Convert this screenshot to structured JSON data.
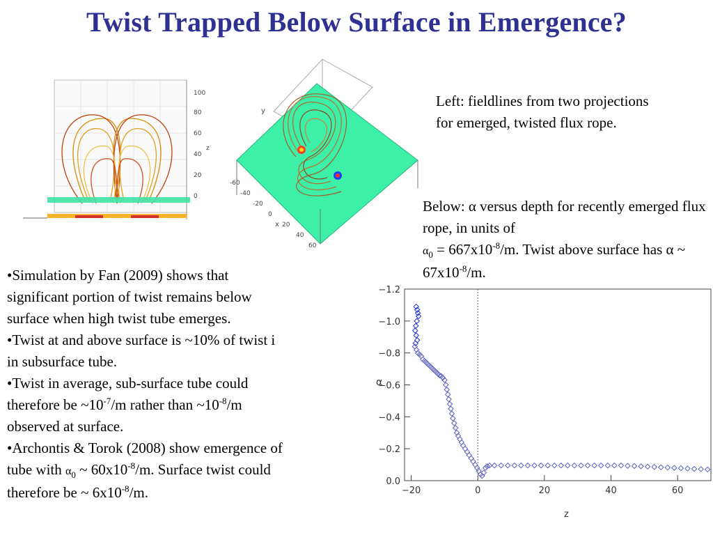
{
  "slide": {
    "title": "Twist Trapped Below Surface in Emergence?"
  },
  "caption_left": "Left: fieldlines from two projections for emerged, twisted flux rope.",
  "caption_below": {
    "line1": "Below: α versus depth for recently emerged flux rope, in units of",
    "alpha": "α",
    "alpha_sub": "0",
    "eq": " = 667x10",
    "eq_exp": "-8",
    "eq_tail": "/m. Twist above surface has α ~ 67x10",
    "eq_exp2": "-8",
    "eq_tail2": "/m."
  },
  "bullets": {
    "b1_l1": "•Simulation by Fan (2009) shows that",
    "b1_l2": "significant portion of twist remains below",
    "b1_l3": "surface when high twist tube emerges.",
    "b2_l1": "•Twist at and above surface is ~10% of twist i",
    "b2_l2": "in subsurface tube.",
    "b3_l1": "•Twist in average, sub-surface tube could",
    "b3_l2a": "therefore be ~10",
    "b3_l2e": "-7",
    "b3_l2b": "/m rather than ~10",
    "b3_l2e2": "-8",
    "b3_l2c": "/m",
    "b3_l3": "observed at surface.",
    "b4_l1": "•Archontis & Torok (2008) show emergence of",
    "b4_l2a": "tube with ",
    "b4_l2alpha": "α",
    "b4_l2sub": "0",
    "b4_l2b": " ~ 60x10",
    "b4_l2e": "-8",
    "b4_l2c": "/m. Surface twist could",
    "b4_l3a": "therefore  be ~ 6x10",
    "b4_l3e": "-8",
    "b4_l3b": "/m."
  },
  "fig1": {
    "z_label": "z",
    "z_ticks": [
      "100",
      "80",
      "60",
      "40",
      "20",
      "0"
    ]
  },
  "fig2": {
    "x_label": "x",
    "y_label": "y",
    "x_ticks": [
      "-60",
      "-40",
      "-20",
      "0",
      "20",
      "40",
      "60"
    ]
  },
  "chart_data": {
    "type": "scatter",
    "xlabel": "z",
    "ylabel": "α",
    "xlim": [
      -22,
      70
    ],
    "ylim": [
      0.0,
      -1.2
    ],
    "x_ticks": [
      "−20",
      "0",
      "20",
      "40",
      "60"
    ],
    "y_ticks": [
      "−1.2",
      "−1.0",
      "−0.8",
      "−0.6",
      "−0.4",
      "−0.2",
      "0.0"
    ],
    "x_tick_values": [
      -20,
      0,
      20,
      40,
      60
    ],
    "y_tick_values": [
      -1.2,
      -1.0,
      -0.8,
      -0.6,
      -0.4,
      -0.2,
      0.0
    ],
    "reference_line_x": 0,
    "series": [
      {
        "points": [
          [
            -18.5,
            -1.09
          ],
          [
            -18.2,
            -1.07
          ],
          [
            -18.0,
            -1.05
          ],
          [
            -17.8,
            -1.03
          ],
          [
            -18.3,
            -1.0
          ],
          [
            -18.6,
            -0.97
          ],
          [
            -18.8,
            -0.94
          ],
          [
            -18.5,
            -0.91
          ],
          [
            -18.2,
            -0.88
          ],
          [
            -18.7,
            -0.86
          ],
          [
            -18.9,
            -0.84
          ],
          [
            -18.4,
            -0.82
          ],
          [
            -18.0,
            -0.8
          ],
          [
            -17.5,
            -0.79
          ],
          [
            -17.0,
            -0.78
          ],
          [
            -16.5,
            -0.76
          ],
          [
            -16.0,
            -0.75
          ],
          [
            -15.5,
            -0.74
          ],
          [
            -15.0,
            -0.73
          ],
          [
            -14.5,
            -0.72
          ],
          [
            -14.0,
            -0.71
          ],
          [
            -13.5,
            -0.7
          ],
          [
            -13.0,
            -0.69
          ],
          [
            -12.5,
            -0.68
          ],
          [
            -12.0,
            -0.67
          ],
          [
            -11.5,
            -0.66
          ],
          [
            -11.0,
            -0.655
          ],
          [
            -10.5,
            -0.645
          ],
          [
            -10.0,
            -0.63
          ],
          [
            -9.6,
            -0.6
          ],
          [
            -9.3,
            -0.57
          ],
          [
            -9.0,
            -0.54
          ],
          [
            -8.7,
            -0.51
          ],
          [
            -8.4,
            -0.48
          ],
          [
            -8.1,
            -0.45
          ],
          [
            -7.8,
            -0.42
          ],
          [
            -7.5,
            -0.39
          ],
          [
            -7.1,
            -0.36
          ],
          [
            -6.7,
            -0.33
          ],
          [
            -6.3,
            -0.3
          ],
          [
            -5.9,
            -0.28
          ],
          [
            -5.4,
            -0.26
          ],
          [
            -4.9,
            -0.24
          ],
          [
            -4.4,
            -0.22
          ],
          [
            -3.8,
            -0.2
          ],
          [
            -3.2,
            -0.18
          ],
          [
            -2.6,
            -0.16
          ],
          [
            -2.0,
            -0.14
          ],
          [
            -1.4,
            -0.12
          ],
          [
            -0.8,
            -0.1
          ],
          [
            -0.2,
            -0.08
          ],
          [
            0.3,
            -0.06
          ],
          [
            0.8,
            -0.04
          ],
          [
            1.3,
            -0.03
          ],
          [
            1.8,
            -0.05
          ],
          [
            2.3,
            -0.08
          ],
          [
            2.8,
            -0.09
          ],
          [
            3.5,
            -0.095
          ],
          [
            5,
            -0.095
          ],
          [
            7,
            -0.095
          ],
          [
            9,
            -0.095
          ],
          [
            11,
            -0.095
          ],
          [
            13,
            -0.095
          ],
          [
            15,
            -0.095
          ],
          [
            17,
            -0.095
          ],
          [
            19,
            -0.095
          ],
          [
            21,
            -0.095
          ],
          [
            23,
            -0.095
          ],
          [
            25,
            -0.095
          ],
          [
            27,
            -0.095
          ],
          [
            29,
            -0.095
          ],
          [
            31,
            -0.095
          ],
          [
            33,
            -0.095
          ],
          [
            35,
            -0.095
          ],
          [
            37,
            -0.095
          ],
          [
            39,
            -0.095
          ],
          [
            41,
            -0.095
          ],
          [
            43,
            -0.095
          ],
          [
            45,
            -0.093
          ],
          [
            47,
            -0.092
          ],
          [
            49,
            -0.09
          ],
          [
            51,
            -0.088
          ],
          [
            53,
            -0.086
          ],
          [
            55,
            -0.084
          ],
          [
            57,
            -0.082
          ],
          [
            59,
            -0.08
          ],
          [
            61,
            -0.078
          ],
          [
            63,
            -0.076
          ],
          [
            65,
            -0.074
          ],
          [
            67,
            -0.072
          ],
          [
            69,
            -0.07
          ]
        ]
      }
    ]
  }
}
